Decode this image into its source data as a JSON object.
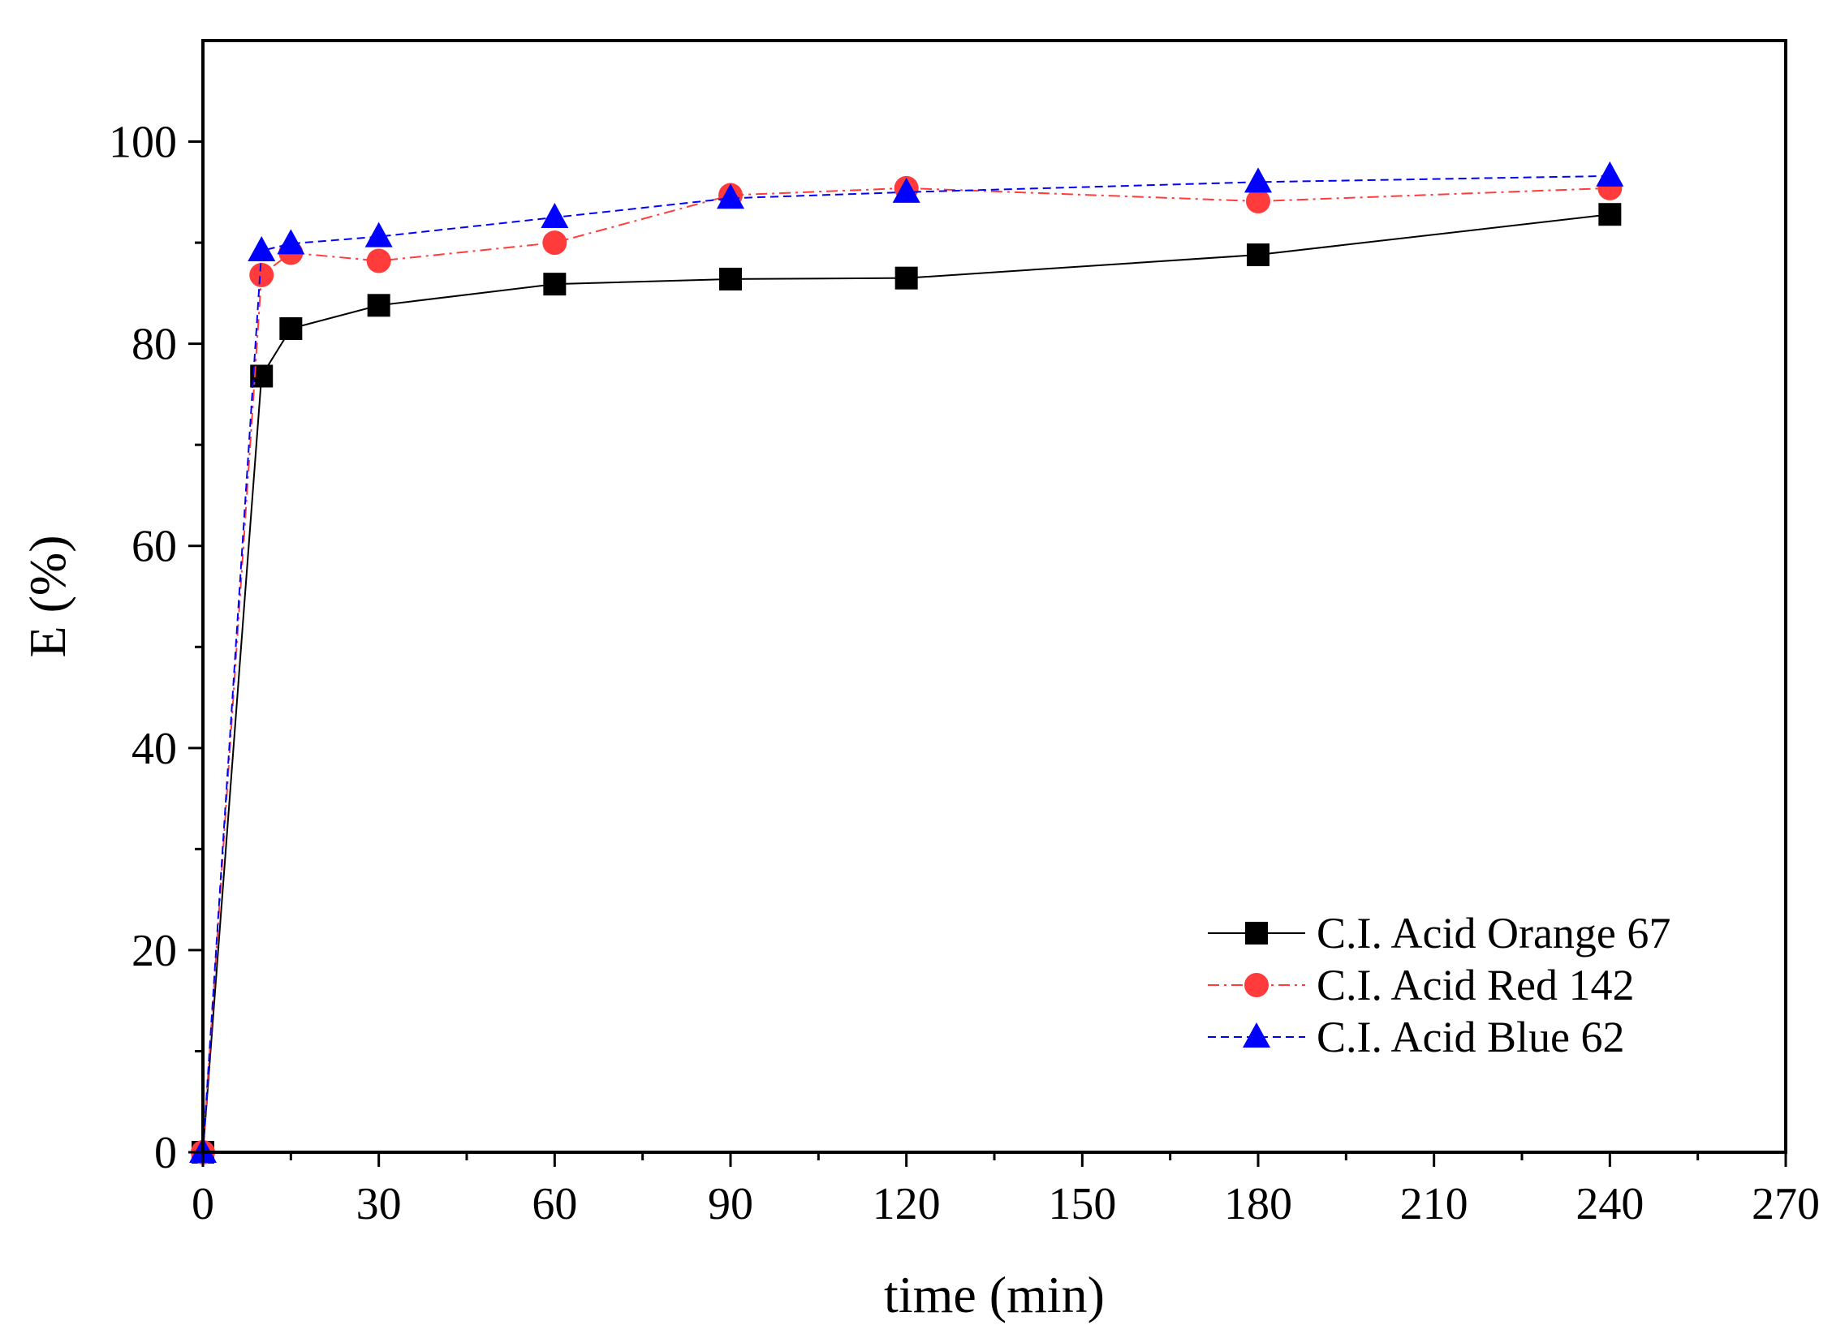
{
  "chart_data": {
    "type": "line",
    "title": "",
    "xlabel": "time (min)",
    "ylabel": "E (%)",
    "xlim": [
      0,
      270
    ],
    "ylim": [
      0,
      110
    ],
    "xticks": [
      0,
      30,
      60,
      90,
      120,
      150,
      180,
      210,
      240,
      270
    ],
    "yticks": [
      0,
      20,
      40,
      60,
      80,
      100
    ],
    "grid": false,
    "legend_position": "bottom-right",
    "series": [
      {
        "name": "C.I. Acid Orange 67",
        "color": "#000000",
        "marker": "square",
        "line_style": "solid",
        "x": [
          0,
          10,
          15,
          30,
          60,
          90,
          120,
          180,
          240
        ],
        "y": [
          0,
          76.8,
          81.5,
          83.8,
          85.9,
          86.4,
          86.5,
          88.8,
          92.8
        ]
      },
      {
        "name": "C.I. Acid Red 142",
        "color": "#ff3b3b",
        "marker": "circle",
        "line_style": "dash-dot",
        "x": [
          0,
          10,
          15,
          30,
          60,
          90,
          120,
          180,
          240
        ],
        "y": [
          0,
          86.8,
          89.0,
          88.2,
          90.0,
          94.7,
          95.4,
          94.1,
          95.4
        ]
      },
      {
        "name": "C.I. Acid Blue 62",
        "color": "#0000ff",
        "marker": "triangle",
        "line_style": "dashed",
        "x": [
          0,
          10,
          15,
          30,
          60,
          90,
          120,
          180,
          240
        ],
        "y": [
          0,
          89.2,
          89.9,
          90.6,
          92.5,
          94.4,
          95.0,
          96.0,
          96.6
        ]
      }
    ]
  }
}
